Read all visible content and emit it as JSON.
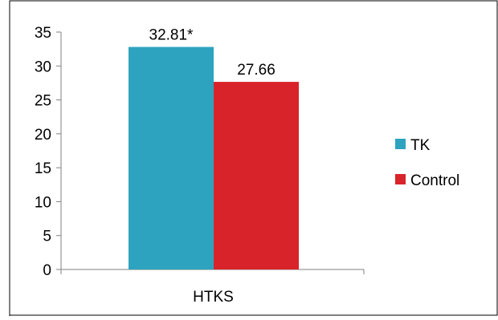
{
  "chart_data": {
    "type": "bar",
    "categories": [
      "HTKS"
    ],
    "series": [
      {
        "name": "TK",
        "values": [
          32.81
        ],
        "data_label": "32.81*",
        "color": "#2ea3bf"
      },
      {
        "name": "Control",
        "values": [
          27.66
        ],
        "data_label": "27.66",
        "color": "#d9232a"
      }
    ],
    "ylim": [
      0,
      35
    ],
    "yticks": [
      0,
      5,
      10,
      15,
      20,
      25,
      30,
      35
    ],
    "grid": false,
    "legend": "right"
  }
}
